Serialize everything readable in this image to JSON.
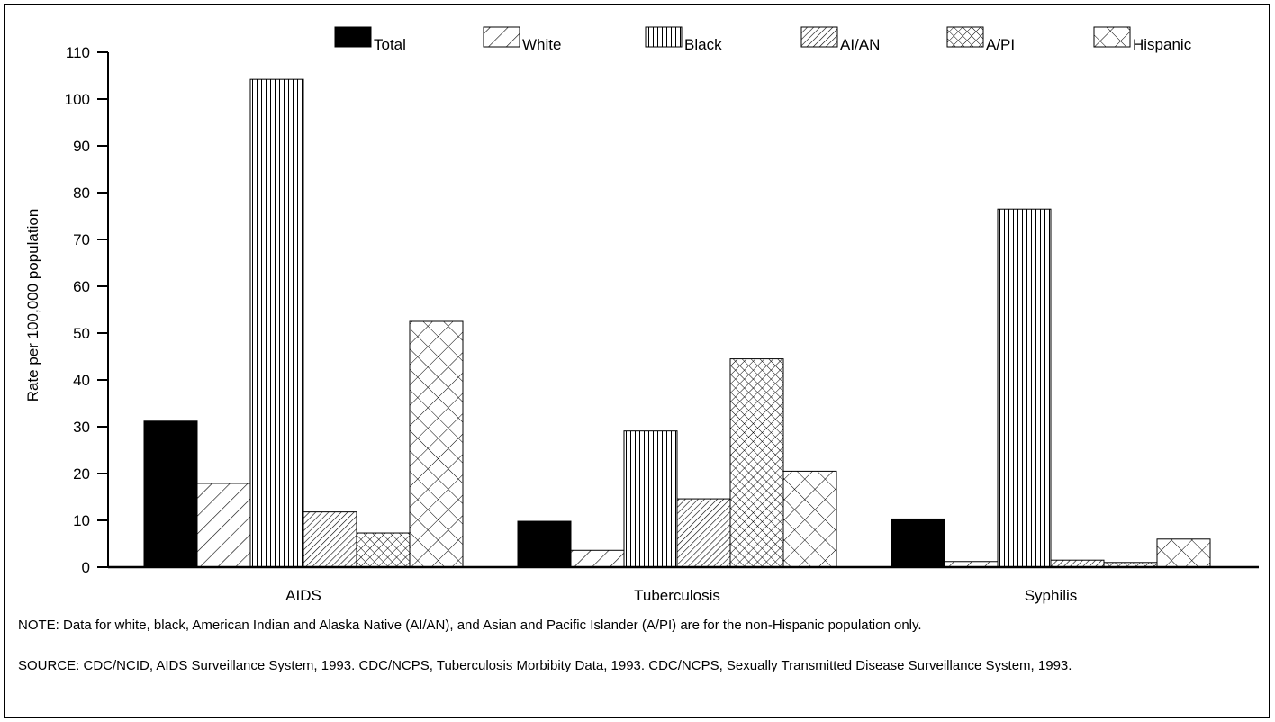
{
  "chart_data": {
    "type": "bar",
    "title": "",
    "xlabel": "",
    "ylabel": "Rate per 100,000 population",
    "ylim": [
      0,
      110
    ],
    "yticks": [
      0,
      10,
      20,
      30,
      40,
      50,
      60,
      70,
      80,
      90,
      100,
      110
    ],
    "categories": [
      "AIDS",
      "Tuberculosis",
      "Syphilis"
    ],
    "legend_position": "top",
    "grid": false,
    "series": [
      {
        "name": "Total",
        "pattern": "solid",
        "values": [
          31.2,
          9.8,
          10.3
        ]
      },
      {
        "name": "White",
        "pattern": "diag-wide",
        "values": [
          17.9,
          3.6,
          1.2
        ]
      },
      {
        "name": "Black",
        "pattern": "vertical",
        "values": [
          104.2,
          29.1,
          76.5
        ]
      },
      {
        "name": "AI/AN",
        "pattern": "diag-dense",
        "values": [
          11.8,
          14.6,
          1.5
        ]
      },
      {
        "name": "A/PI",
        "pattern": "crosshatch-dense",
        "values": [
          7.3,
          44.5,
          1.0
        ]
      },
      {
        "name": "Hispanic",
        "pattern": "crosshatch-wide",
        "values": [
          52.5,
          20.5,
          6.0
        ]
      }
    ]
  },
  "notes": {
    "note": "NOTE:  Data for white, black, American Indian and Alaska Native (AI/AN), and Asian and Pacific Islander (A/PI) are for the non-Hispanic population only.",
    "source": "SOURCE: CDC/NCID, AIDS Surveillance System, 1993. CDC/NCPS, Tuberculosis Morbibity Data, 1993. CDC/NCPS, Sexually Transmitted Disease Surveillance System, 1993."
  }
}
